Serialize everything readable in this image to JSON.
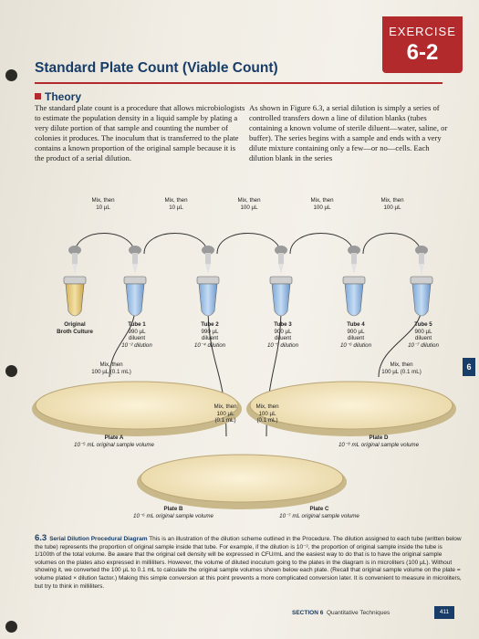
{
  "header": {
    "exercise_label": "EXERCISE",
    "exercise_number": "6-2",
    "title": "Standard Plate Count (Viable Count)",
    "section_heading": "Theory"
  },
  "colors": {
    "accent_red": "#b32a2d",
    "heading_navy": "#173d68"
  },
  "body": {
    "left_column": "The standard plate count is a procedure that allows microbiologists to estimate the population density in a liquid sample by plating a very dilute portion of that sample and counting the number of colonies it produces. The inoculum that is transferred to the plate contains a known proportion of the original sample because it is the product of a serial dilution.",
    "right_column": "As shown in Figure 6.3, a serial dilution is simply a series of controlled transfers down a line of dilution blanks (tubes containing a known volume of sterile diluent—water, saline, or buffer). The series begins with a sample and ends with a very dilute mixture containing only a few—or no—cells. Each dilution blank in the series"
  },
  "figure": {
    "transfers": [
      {
        "line1": "Mix, then",
        "line2": "10 µL"
      },
      {
        "line1": "Mix, then",
        "line2": "10 µL"
      },
      {
        "line1": "Mix, then",
        "line2": "100 µL"
      },
      {
        "line1": "Mix, then",
        "line2": "100 µL"
      },
      {
        "line1": "Mix, then",
        "line2": "100 µL"
      }
    ],
    "tubes": [
      {
        "name": "Original",
        "line2": "Broth Culture",
        "line3": "",
        "line4": "",
        "dilution": ""
      },
      {
        "name": "Tube 1",
        "line2": "990 µL",
        "line3": "diluent",
        "dilution": "10⁻² dilution"
      },
      {
        "name": "Tube 2",
        "line2": "990 µL",
        "line3": "diluent",
        "dilution": "10⁻⁴ dilution"
      },
      {
        "name": "Tube 3",
        "line2": "900 µL",
        "line3": "diluent",
        "dilution": "10⁻⁵ dilution"
      },
      {
        "name": "Tube 4",
        "line2": "900 µL",
        "line3": "diluent",
        "dilution": "10⁻⁶ dilution"
      },
      {
        "name": "Tube 5",
        "line2": "900 µL",
        "line3": "diluent",
        "dilution": "10⁻⁷ dilution"
      }
    ],
    "plate_transfers": [
      {
        "line1": "Mix, then",
        "line2": "100 µL (0.1 mL)"
      },
      {
        "line1": "Mix, then",
        "line2": "100 µL (0.1 mL)"
      },
      {
        "line1": "Mix, then",
        "line2": "100 µL",
        "line3": "(0.1 mL)"
      },
      {
        "line1": "Mix, then",
        "line2": "100 µL",
        "line3": "(0.1 mL)"
      }
    ],
    "plates": [
      {
        "name": "Plate A",
        "volume": "10⁻⁵ mL original sample volume"
      },
      {
        "name": "Plate B",
        "volume": "10⁻⁶ mL original sample volume"
      },
      {
        "name": "Plate C",
        "volume": "10⁻⁷ mL original sample volume"
      },
      {
        "name": "Plate D",
        "volume": "10⁻⁸ mL original sample volume"
      }
    ]
  },
  "caption": {
    "number": "6.3",
    "title": "Serial Dilution Procedural Diagram",
    "text": "This is an illustration of the dilution scheme outlined in the Procedure. The dilution assigned to each tube (written below the tube) represents the proportion of original sample inside that tube. For example, if the dilution is 10⁻², the proportion of original sample inside the tube is 1/100th of the total volume. Be aware that the original cell density will be expressed in CFU/mL and the easiest way to do that is to have the original sample volumes on the plates also expressed in milliliters. However, the volume of diluted inoculum going to the plates in the diagram is in microliters (100 µL). Without showing it, we converted the 100 µL to 0.1 mL to calculate the original sample volumes shown below each plate. (Recall that original sample volume on the plate = volume plated × dilution factor.) Making this simple conversion at this point prevents a more complicated conversion later. It is convenient to measure in microliters, but try to think in milliliters."
  },
  "footer": {
    "section": "SECTION 6",
    "section_title": "Quantitative Techniques",
    "page_number": "411",
    "side_tab": "6"
  }
}
